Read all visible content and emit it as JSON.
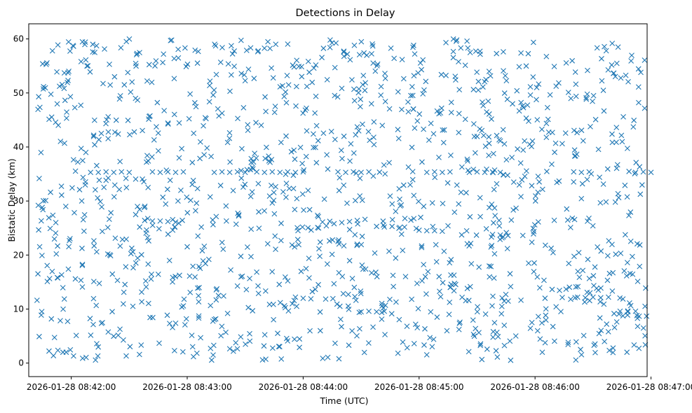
{
  "chart_data": {
    "type": "scatter",
    "title": "Detections in Delay",
    "xlabel": "Time (UTC)",
    "ylabel": "Bistatic Delay (km)",
    "marker": "x",
    "color": "#1f77b4",
    "grid": false,
    "legend": "none",
    "xlim": [
      "2026-01-28 08:41:38",
      "2026-01-28 08:46:58"
    ],
    "ylim": [
      -2.5,
      62.8
    ],
    "xticks": [
      "2026-01-28 08:42:00",
      "2026-01-28 08:43:00",
      "2026-01-28 08:44:00",
      "2026-01-28 08:45:00",
      "2026-01-28 08:46:00",
      "2026-01-28 08:47:00"
    ],
    "yticks": [
      0,
      10,
      20,
      30,
      40,
      50,
      60
    ],
    "series": [
      {
        "tracks": [
          {
            "x": [
              "2026-01-28 08:42:10",
              "2026-01-28 08:42:14",
              "2026-01-28 08:42:18",
              "2026-01-28 08:42:22",
              "2026-01-28 08:42:26",
              "2026-01-28 08:42:30"
            ],
            "y": [
              35.3,
              35.3,
              35.4,
              35.3,
              35.4,
              35.3
            ]
          },
          {
            "x": [
              "2026-01-28 08:42:38",
              "2026-01-28 08:42:42",
              "2026-01-28 08:42:46",
              "2026-01-28 08:42:50",
              "2026-01-28 08:42:54"
            ],
            "y": [
              26.4,
              26.3,
              26.3,
              26.2,
              26.1
            ]
          },
          {
            "x": [
              "2026-01-28 08:42:42",
              "2026-01-28 08:42:46",
              "2026-01-28 08:42:50",
              "2026-01-28 08:42:54",
              "2026-01-28 08:42:58"
            ],
            "y": [
              35.4,
              35.3,
              35.4,
              35.3,
              35.4
            ]
          },
          {
            "x": [
              "2026-01-28 08:43:14",
              "2026-01-28 08:43:18",
              "2026-01-28 08:43:22",
              "2026-01-28 08:43:26",
              "2026-01-28 08:43:30"
            ],
            "y": [
              35.3,
              35.4,
              35.3,
              35.4,
              35.3
            ]
          },
          {
            "x": [
              "2026-01-28 08:43:36",
              "2026-01-28 08:43:40",
              "2026-01-28 08:43:44",
              "2026-01-28 08:43:48",
              "2026-01-28 08:43:52",
              "2026-01-28 08:43:56",
              "2026-01-28 08:44:00"
            ],
            "y": [
              35.4,
              35.3,
              35.4,
              35.3,
              35.4,
              35.3,
              35.4
            ]
          },
          {
            "x": [
              "2026-01-28 08:43:56",
              "2026-01-28 08:44:00",
              "2026-01-28 08:44:04"
            ],
            "y": [
              12.2,
              12.0,
              11.9
            ]
          },
          {
            "x": [
              "2026-01-28 08:44:08",
              "2026-01-28 08:44:12",
              "2026-01-28 08:44:16",
              "2026-01-28 08:44:20",
              "2026-01-28 08:44:24",
              "2026-01-28 08:44:28",
              "2026-01-28 08:44:32"
            ],
            "y": [
              25.0,
              25.4,
              25.8,
              26.0,
              26.2,
              26.4,
              26.6
            ]
          },
          {
            "x": [
              "2026-01-28 08:44:18",
              "2026-01-28 08:44:22",
              "2026-01-28 08:44:26",
              "2026-01-28 08:44:30",
              "2026-01-28 08:44:34"
            ],
            "y": [
              35.4,
              35.3,
              35.4,
              35.3,
              35.4
            ]
          },
          {
            "x": [
              "2026-01-28 08:44:30",
              "2026-01-28 08:44:34",
              "2026-01-28 08:44:38",
              "2026-01-28 08:44:42"
            ],
            "y": [
              9.5,
              9.6,
              9.5,
              9.6
            ]
          },
          {
            "x": [
              "2026-01-28 08:44:38",
              "2026-01-28 08:44:42",
              "2026-01-28 08:44:46",
              "2026-01-28 08:44:50"
            ],
            "y": [
              25.3,
              25.2,
              25.3,
              25.1
            ]
          },
          {
            "x": [
              "2026-01-28 08:45:00",
              "2026-01-28 08:45:04",
              "2026-01-28 08:45:08",
              "2026-01-28 08:45:12"
            ],
            "y": [
              24.6,
              24.5,
              24.5,
              24.4
            ]
          },
          {
            "x": [
              "2026-01-28 08:45:04",
              "2026-01-28 08:45:08",
              "2026-01-28 08:45:12",
              "2026-01-28 08:45:16"
            ],
            "y": [
              35.3,
              35.4,
              35.3,
              35.4
            ]
          },
          {
            "x": [
              "2026-01-28 08:45:26",
              "2026-01-28 08:45:30",
              "2026-01-28 08:45:34",
              "2026-01-28 08:45:38",
              "2026-01-28 08:45:42"
            ],
            "y": [
              35.3,
              35.4,
              35.3,
              35.4,
              35.3
            ]
          },
          {
            "x": [
              "2026-01-28 08:45:38",
              "2026-01-28 08:45:42",
              "2026-01-28 08:45:46"
            ],
            "y": [
              23.8,
              23.7,
              23.6
            ]
          },
          {
            "x": [
              "2026-01-28 08:46:22",
              "2026-01-28 08:46:26",
              "2026-01-28 08:46:30",
              "2026-01-28 08:46:34",
              "2026-01-28 08:46:38"
            ],
            "y": [
              12.2,
              12.1,
              12.2,
              12.1,
              12.2
            ]
          },
          {
            "x": [
              "2026-01-28 08:46:20",
              "2026-01-28 08:46:24",
              "2026-01-28 08:46:28"
            ],
            "y": [
              35.4,
              35.3,
              35.4
            ]
          },
          {
            "x": [
              "2026-01-28 08:46:44",
              "2026-01-28 08:46:48",
              "2026-01-28 08:46:52"
            ],
            "y": [
              9.6,
              9.5,
              9.6
            ]
          },
          {
            "x": [
              "2026-01-28 08:46:52",
              "2026-01-28 08:46:56",
              "2026-01-28 08:47:00"
            ],
            "y": [
              35.3,
              35.4,
              35.3
            ]
          }
        ],
        "random_fill": {
          "x_range": [
            "2026-01-28 08:41:42",
            "2026-01-28 08:46:58"
          ],
          "y_range": [
            0.5,
            60
          ],
          "count": 1350
        }
      }
    ]
  }
}
